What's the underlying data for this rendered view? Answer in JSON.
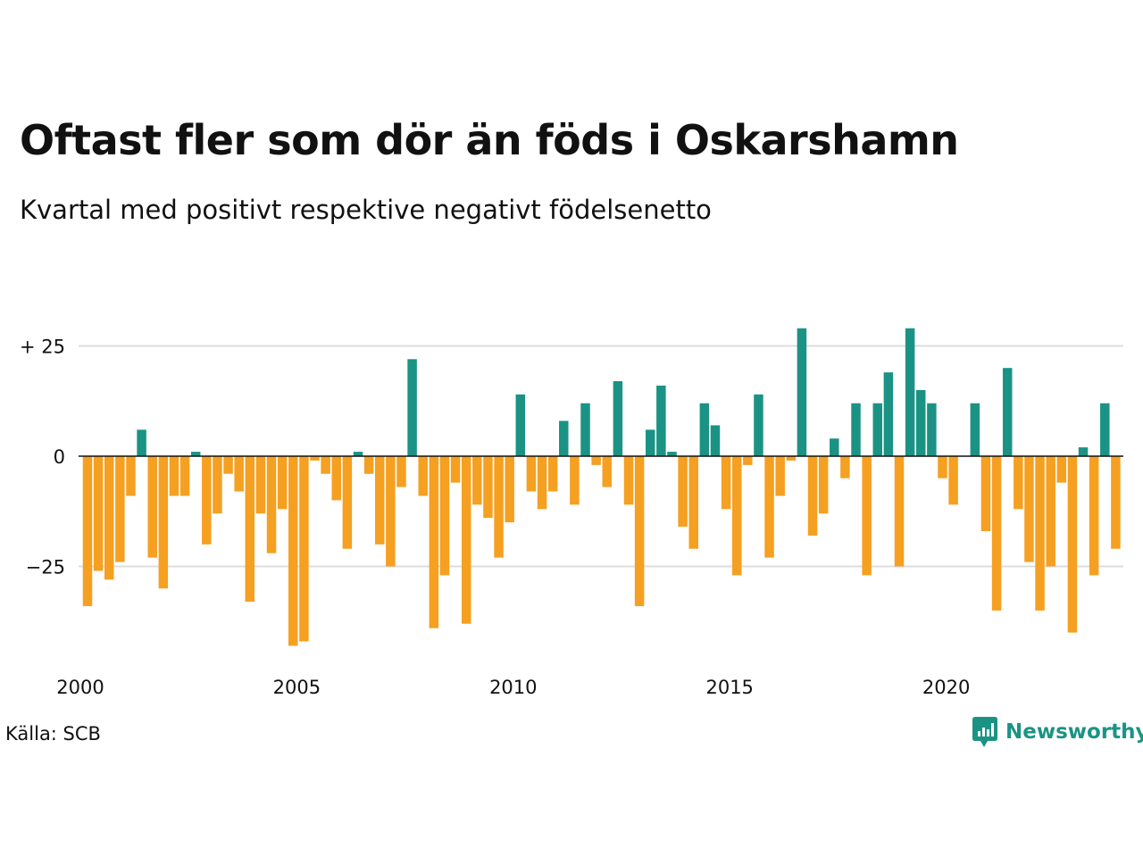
{
  "title": "Oftast fler som dör än föds i Oskarshamn",
  "subtitle": "Kvartal med positivt respektive negativt födelsenetto",
  "source": "Källa: SCB",
  "brand": {
    "name": "Newsworthy",
    "icon": "newsworthy-logo-icon"
  },
  "colors": {
    "positive": "#1b9384",
    "negative": "#f5a021",
    "grid": "#dddddd",
    "zero": "#111111"
  },
  "chart_data": {
    "type": "bar",
    "x_start": "2000 Q1",
    "x_end": "2024 Q1",
    "x_ticks": [
      {
        "label": "2000",
        "year": 2000
      },
      {
        "label": "2005",
        "year": 2005
      },
      {
        "label": "2010",
        "year": 2010
      },
      {
        "label": "2015",
        "year": 2015
      },
      {
        "label": "2020",
        "year": 2020
      }
    ],
    "y_ticks": [
      {
        "label": "+ 25",
        "value": 25
      },
      {
        "label": "0",
        "value": 0
      },
      {
        "label": "−25",
        "value": -25
      }
    ],
    "ylim": [
      -45,
      30
    ],
    "grid": true,
    "values": [
      -34,
      -26,
      -28,
      -24,
      -9,
      6,
      -23,
      -30,
      -9,
      -9,
      1,
      -20,
      -13,
      -4,
      -8,
      -33,
      -13,
      -22,
      -12,
      -43,
      -42,
      -1,
      -4,
      -10,
      -21,
      1,
      -4,
      -20,
      -25,
      -7,
      22,
      -9,
      -39,
      -27,
      -6,
      -38,
      -11,
      -14,
      -23,
      -15,
      14,
      -8,
      -12,
      -8,
      8,
      -11,
      12,
      -2,
      -7,
      17,
      -11,
      -34,
      6,
      16,
      1,
      -16,
      -21,
      12,
      7,
      -12,
      -27,
      -2,
      14,
      -23,
      -9,
      -1,
      29,
      -18,
      -13,
      4,
      -5,
      12,
      -27,
      12,
      19,
      -25,
      29,
      15,
      12,
      -5,
      -11,
      0,
      12,
      -17,
      -35,
      20,
      -12,
      -24,
      -35,
      -25,
      -6,
      -40,
      2,
      -27,
      12,
      -21
    ]
  }
}
